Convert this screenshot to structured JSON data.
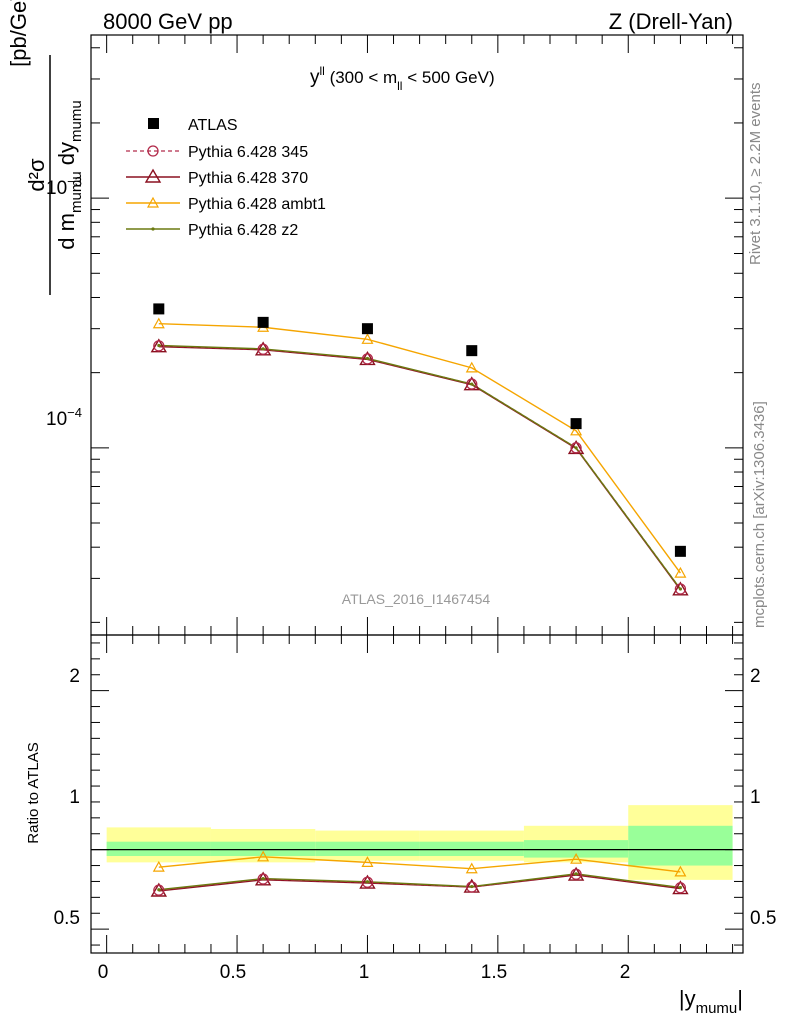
{
  "header": {
    "left": "8000 GeV pp",
    "right": "Z (Drell-Yan)"
  },
  "side_labels": {
    "rivet": "Rivet 3.1.10, ≥ 2.2M events",
    "mcplots": "mcplots.cern.ch [arXiv:1306.3436]"
  },
  "main_plot": {
    "ylabel": {
      "num": "d²σ",
      "den_d": "d m",
      "den_sub1": "mumu",
      "den_dy": " dy",
      "den_sub2": "mumu",
      "unit": "[pb/GeV]"
    },
    "title_main": "y",
    "title_sup": "ll",
    "title_rest1": " (300 < m",
    "title_sub": "ll",
    "title_rest2": " < 500 GeV)",
    "watermark": "ATLAS_2016_I1467454",
    "ytick_labels": {
      "t1e3_base": "10",
      "t1e3_exp": "−3",
      "t1e4_base": "10",
      "t1e4_exp": "−4"
    }
  },
  "ratio_plot": {
    "ylabel": "Ratio to ATLAS",
    "ytick_labels": {
      "t2": "2",
      "t1": "1",
      "t05": "0.5"
    },
    "ytick_labels_right": {
      "t2": "2",
      "t1": "1",
      "t05": "0.5"
    }
  },
  "xaxis": {
    "label": "|y",
    "label_sub": "mumu",
    "label_end": "|",
    "tick_labels": [
      "0",
      "0.5",
      "1",
      "1.5",
      "2"
    ]
  },
  "legend": [
    {
      "name": "ATLAS"
    },
    {
      "name": "Pythia 6.428 345"
    },
    {
      "name": "Pythia 6.428 370"
    },
    {
      "name": "Pythia 6.428 ambt1"
    },
    {
      "name": "Pythia 6.428 z2"
    }
  ],
  "colors": {
    "data": "#000000",
    "p345": "#b22a4a",
    "p370": "#8b1020",
    "ambt1": "#f5a500",
    "z2": "#6b7a10",
    "band_inner": "#99ff99",
    "band_outer": "#ffff99"
  },
  "chart_data": [
    {
      "type": "scatter",
      "title": "y^ll (300 < m_ll < 500 GeV)",
      "xlabel": "|y_mumu|",
      "ylabel": "d²σ / d m_mumu dy_mumu [pb/GeV]",
      "log_y": true,
      "xlim": [
        -0.06,
        2.44
      ],
      "ylim": [
        1.78e-05,
        0.0045
      ],
      "x": [
        0.2,
        0.6,
        1.0,
        1.4,
        1.8,
        2.2
      ],
      "x_edges": [
        0.0,
        0.4,
        0.8,
        1.2,
        1.6,
        2.0,
        2.4
      ],
      "series": [
        {
          "name": "ATLAS",
          "values": [
            0.00036,
            0.000318,
            0.0003,
            0.000245,
            0.000125,
            3.85e-05
          ]
        },
        {
          "name": "Pythia 6.428 345",
          "values": [
            0.000256,
            0.000248,
            0.000227,
            0.00018,
            0.0001,
            2.72e-05
          ]
        },
        {
          "name": "Pythia 6.428 370",
          "values": [
            0.000254,
            0.000247,
            0.000226,
            0.000179,
            9.95e-05,
            2.7e-05
          ]
        },
        {
          "name": "Pythia 6.428 ambt1",
          "values": [
            0.000314,
            0.000304,
            0.000272,
            0.000209,
            0.000117,
            3.15e-05
          ]
        },
        {
          "name": "Pythia 6.428 z2",
          "values": [
            0.000257,
            0.000249,
            0.000228,
            0.00018,
            0.0001,
            2.72e-05
          ]
        }
      ],
      "legend_position": "top-left",
      "grid": false
    },
    {
      "type": "line",
      "ylabel": "Ratio to ATLAS",
      "xlabel": "|y_mumu|",
      "xlim": [
        -0.06,
        2.44
      ],
      "ylim": [
        0.35,
        2.35
      ],
      "x": [
        0.2,
        0.6,
        1.0,
        1.4,
        1.8,
        2.2
      ],
      "bands": {
        "x_edges": [
          0.0,
          0.4,
          0.8,
          1.2,
          1.6,
          2.0,
          2.4
        ],
        "inner_lo": [
          0.96,
          0.96,
          0.96,
          0.96,
          0.95,
          0.9
        ],
        "inner_hi": [
          1.05,
          1.05,
          1.05,
          1.05,
          1.06,
          1.15
        ],
        "outer_lo": [
          0.92,
          0.92,
          0.93,
          0.93,
          0.92,
          0.81
        ],
        "outer_hi": [
          1.14,
          1.13,
          1.12,
          1.12,
          1.15,
          1.28
        ]
      },
      "reference": 1.0,
      "series": [
        {
          "name": "Pythia 6.428 345",
          "values": [
            0.745,
            0.815,
            0.795,
            0.765,
            0.845,
            0.76
          ]
        },
        {
          "name": "Pythia 6.428 370",
          "values": [
            0.74,
            0.81,
            0.79,
            0.765,
            0.84,
            0.755
          ]
        },
        {
          "name": "Pythia 6.428 ambt1",
          "values": [
            0.89,
            0.955,
            0.92,
            0.88,
            0.94,
            0.86
          ]
        },
        {
          "name": "Pythia 6.428 z2",
          "values": [
            0.748,
            0.818,
            0.798,
            0.768,
            0.848,
            0.762
          ]
        }
      ]
    }
  ]
}
